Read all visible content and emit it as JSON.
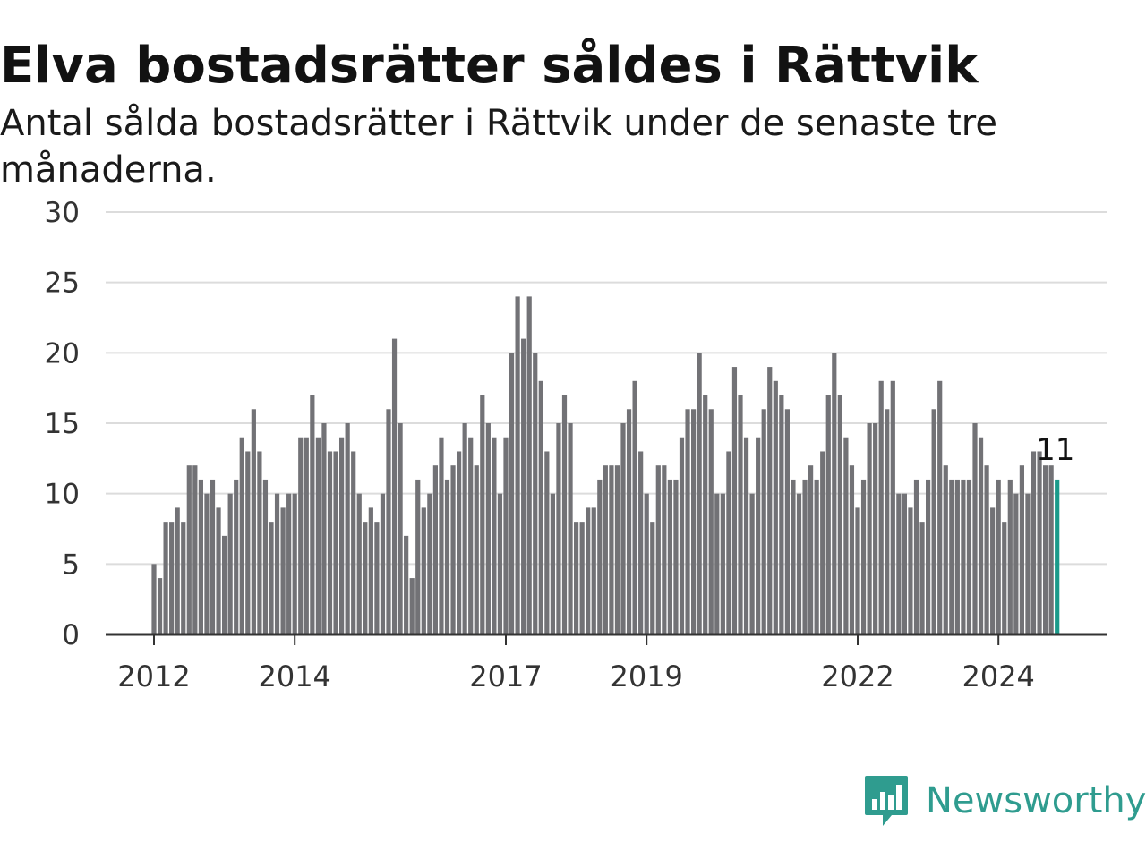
{
  "header": {
    "title": "Elva bostadsrätter såldes i Rättvik",
    "subtitle": "Antal sålda bostadsrätter i Rättvik under de senaste tre månaderna."
  },
  "brand": {
    "name": "Newsworthy",
    "icon": "bar-chart-speech-bubble-icon"
  },
  "colors": {
    "bar": "#727276",
    "highlight": "#1a9a8a",
    "grid": "#dcdcdc",
    "axis": "#333333",
    "brand": "#2f9c8f"
  },
  "chart_data": {
    "type": "bar",
    "title": "Elva bostadsrätter såldes i Rättvik",
    "subtitle": "Antal sålda bostadsrätter i Rättvik under de senaste tre månaderna.",
    "ylim": [
      0,
      30
    ],
    "yticks": [
      0,
      5,
      10,
      15,
      20,
      25,
      30
    ],
    "grid": true,
    "xticks": [
      {
        "label": "2012",
        "index": 0
      },
      {
        "label": "2014",
        "index": 8
      },
      {
        "label": "2017",
        "index": 20
      },
      {
        "label": "2019",
        "index": 28
      },
      {
        "label": "2022",
        "index": 40
      },
      {
        "label": "2024",
        "index": 48
      }
    ],
    "period": "quarterly, rolling three-month totals",
    "last_value_label": "11",
    "values": [
      5,
      4,
      8,
      8,
      9,
      8,
      12,
      12,
      11,
      10,
      11,
      9,
      7,
      10,
      11,
      14,
      13,
      16,
      13,
      11,
      8,
      10,
      9,
      10,
      10,
      14,
      14,
      17,
      14,
      15,
      13,
      13,
      14,
      15,
      13,
      10,
      8,
      9,
      8,
      10,
      16,
      21,
      15,
      7,
      4,
      11,
      9,
      10,
      12,
      14,
      11,
      12,
      13,
      15,
      14,
      12,
      17,
      15,
      14,
      10,
      14,
      20,
      24,
      21,
      24,
      20,
      18,
      13,
      10,
      15,
      17,
      15,
      8,
      8,
      9,
      9,
      11,
      12,
      12,
      12,
      15,
      16,
      18,
      13,
      10,
      8,
      12,
      12,
      11,
      11,
      14,
      16,
      16,
      20,
      17,
      16,
      10,
      10,
      13,
      19,
      17,
      14,
      10,
      14,
      16,
      19,
      18,
      17,
      16,
      11,
      10,
      11,
      12,
      11,
      13,
      17,
      20,
      17,
      14,
      12,
      9,
      11,
      15,
      15,
      18,
      16,
      18,
      10,
      10,
      9,
      11,
      8,
      11,
      16,
      18,
      12,
      11,
      11,
      11,
      11,
      15,
      14,
      12,
      9,
      11,
      8,
      11,
      10,
      12,
      10,
      13,
      13,
      12,
      12,
      11
    ]
  }
}
